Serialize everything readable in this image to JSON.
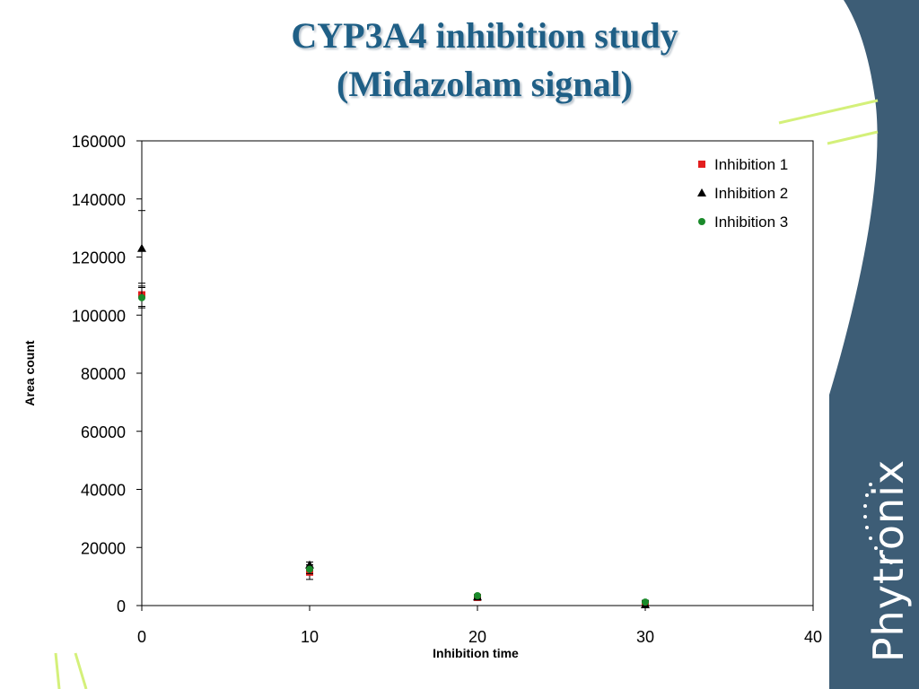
{
  "slide": {
    "title_line1": "CYP3A4 inhibition study",
    "title_line2": "(Midazolam signal)",
    "brand": "Phytronix",
    "colors": {
      "title": "#1f5f86",
      "side_panel": "#3d5d76",
      "accent_lines": "#d4f07a"
    }
  },
  "chart_data": {
    "type": "scatter",
    "title": "",
    "xlabel": "Inhibition time",
    "ylabel": "Area count",
    "xlim": [
      0,
      40
    ],
    "ylim": [
      0,
      160000
    ],
    "x_ticks": [
      0,
      10,
      20,
      30,
      40
    ],
    "y_ticks": [
      0,
      20000,
      40000,
      60000,
      80000,
      100000,
      120000,
      140000,
      160000
    ],
    "legend_position": "top-right",
    "grid": false,
    "series": [
      {
        "name": "Inhibition 1",
        "marker": "square",
        "color": "#e31e1e",
        "points": [
          {
            "x": 0,
            "y": 107000,
            "err": 4000
          },
          {
            "x": 10,
            "y": 11500,
            "err": 2500
          },
          {
            "x": 20,
            "y": 2800,
            "err": 500
          },
          {
            "x": 30,
            "y": 500,
            "err": 200
          }
        ]
      },
      {
        "name": "Inhibition 2",
        "marker": "triangle",
        "color": "#000000",
        "points": [
          {
            "x": 0,
            "y": 123000,
            "err": 13000
          },
          {
            "x": 10,
            "y": 14000,
            "err": 1000
          },
          {
            "x": 20,
            "y": 3000,
            "err": 500
          },
          {
            "x": 30,
            "y": 300,
            "err": 1500
          }
        ]
      },
      {
        "name": "Inhibition 3",
        "marker": "circle",
        "color": "#1a8a2a",
        "points": [
          {
            "x": 0,
            "y": 106000,
            "err": 3500
          },
          {
            "x": 10,
            "y": 12500,
            "err": 1500
          },
          {
            "x": 20,
            "y": 3400,
            "err": 300
          },
          {
            "x": 30,
            "y": 1200,
            "err": 200
          }
        ]
      }
    ]
  }
}
